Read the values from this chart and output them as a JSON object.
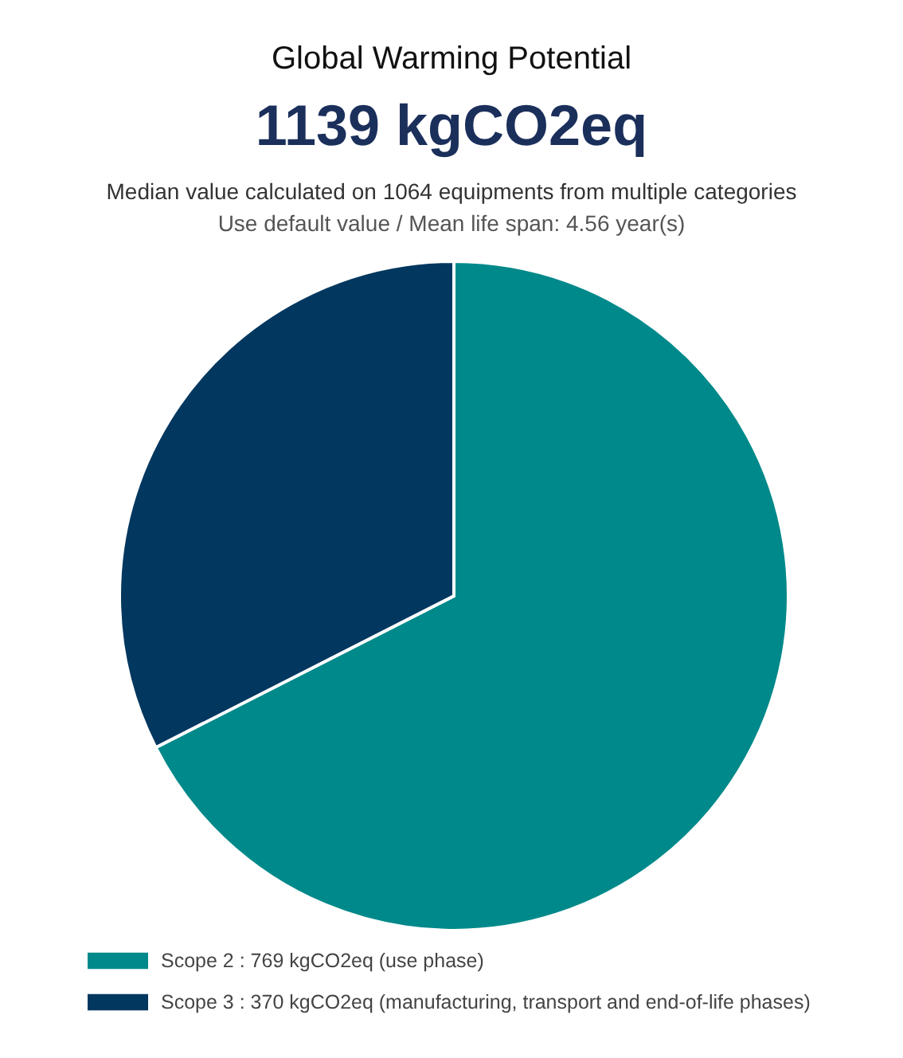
{
  "chart_data": {
    "type": "pie",
    "title": "Global Warming Potential",
    "subtitle": "1139 kgCO2eq",
    "annotations": [
      "Median value calculated on 1064 equipments from multiple categories",
      "Use default value / Mean life span: 4.56 year(s)"
    ],
    "categories": [
      "Scope 2 : 769 kgCO2eq (use phase)",
      "Scope 3 : 370 kgCO2eq (manufacturing, transport and end-of-life phases)"
    ],
    "values": [
      769,
      370
    ],
    "colors": [
      "#00898a",
      "#02375f"
    ],
    "legend": "bottom left"
  }
}
